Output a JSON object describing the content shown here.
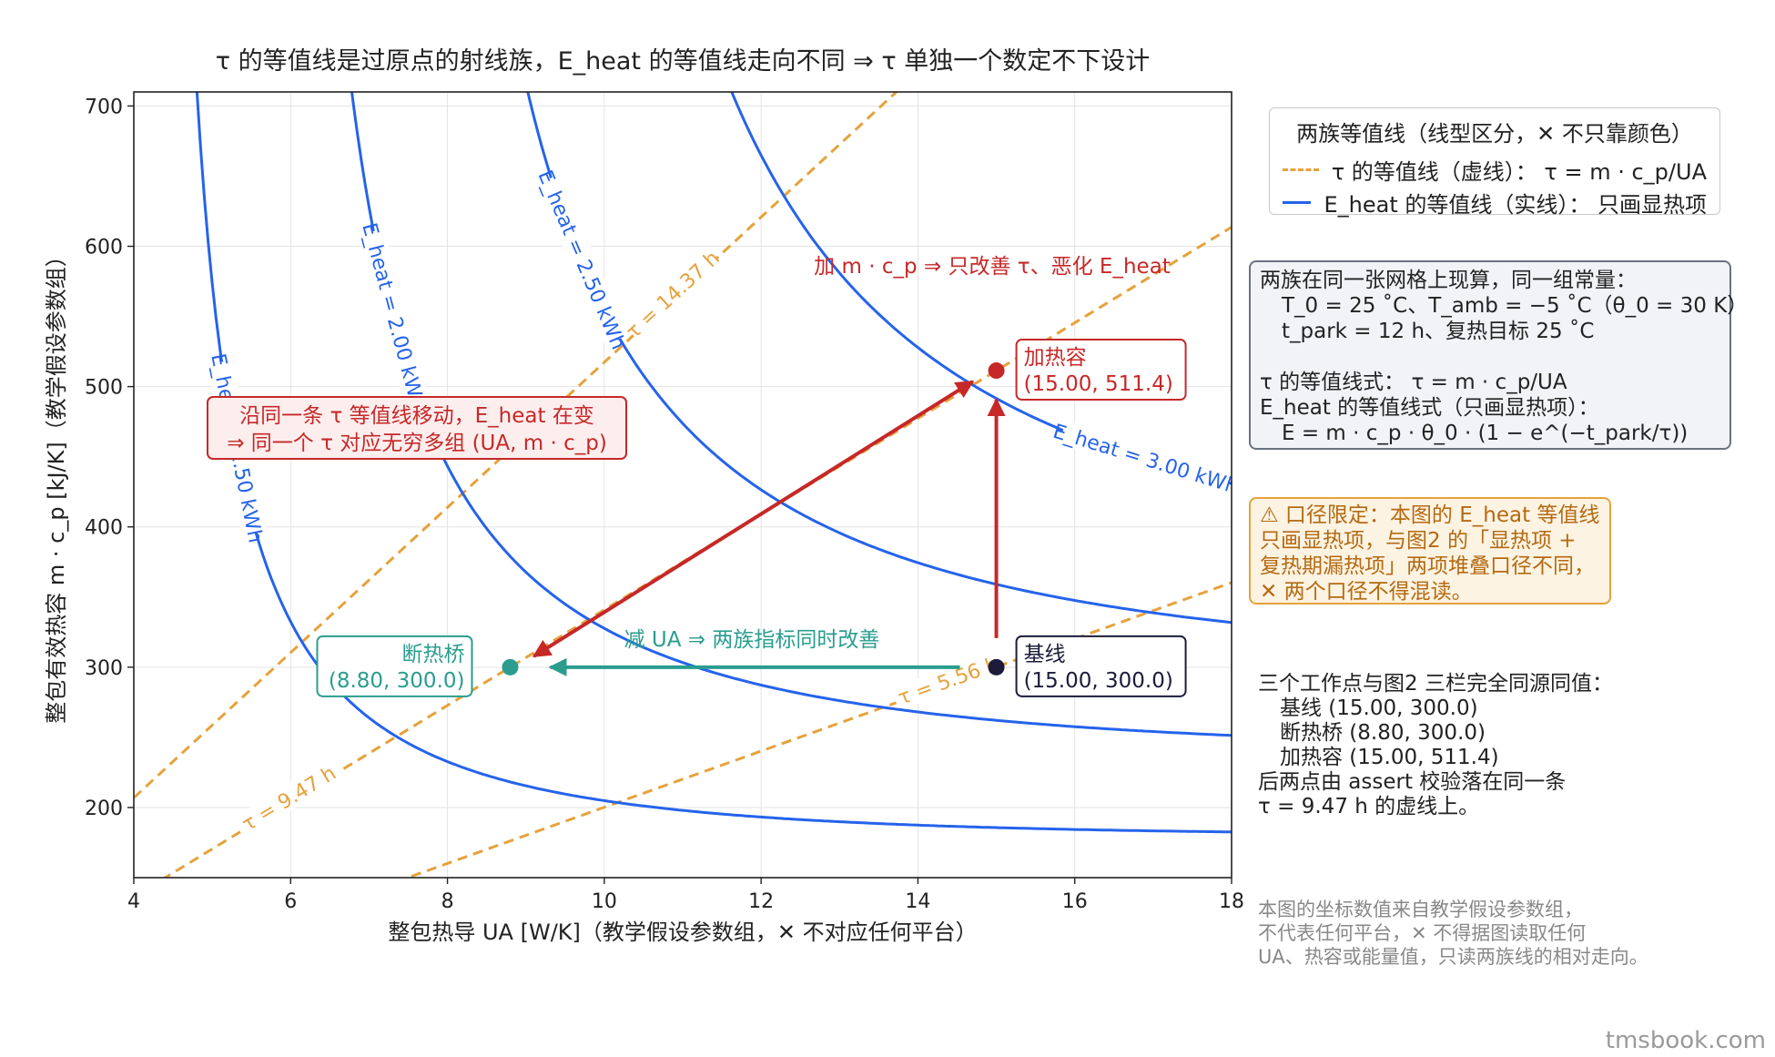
{
  "title": "τ 的等值线是过原点的射线族，E_heat 的等值线走向不同 ⇒ τ 单独一个数定不下设计",
  "chart_data": {
    "type": "line",
    "xlabel": "整包热导 UA [W/K]（教学假设参数组，✕ 不对应任何平台）",
    "ylabel": "整包有效热容 m · c_p [kJ/K]（教学假设参数组）",
    "xlim": [
      4,
      18
    ],
    "ylim": [
      150,
      710
    ],
    "xticks": [
      4,
      6,
      8,
      10,
      12,
      14,
      16,
      18
    ],
    "yticks": [
      200,
      300,
      400,
      500,
      600,
      700
    ],
    "grid": true,
    "constants": {
      "theta0": 30,
      "t_park": 12
    },
    "tau_lines": [
      {
        "tau": 5.56,
        "label": "τ = 5.56 h"
      },
      {
        "tau": 9.47,
        "label": "τ = 9.47 h"
      },
      {
        "tau": 14.37,
        "label": "τ = 14.37 h"
      }
    ],
    "eheat_lines": [
      {
        "E": 1.5,
        "label": "E_heat = 1.50 kWh"
      },
      {
        "E": 2.0,
        "label": "E_heat = 2.00 kWh"
      },
      {
        "E": 2.5,
        "label": "E_heat = 2.50 kWh"
      },
      {
        "E": 3.0,
        "label": "E_heat = 3.00 kWh"
      }
    ],
    "points": [
      {
        "name": "基线",
        "label": "基线\n(15.00, 300.0)",
        "x": 15.0,
        "y": 300.0,
        "color": "#1c1c3a"
      },
      {
        "name": "断热桥",
        "label": "断热桥\n(8.80, 300.0)",
        "x": 8.8,
        "y": 300.0,
        "color": "#2a9d8f"
      },
      {
        "name": "加热容",
        "label": "加热容\n(15.00, 511.4)",
        "x": 15.0,
        "y": 511.4,
        "color": "#c62828"
      }
    ],
    "annotations": {
      "reduce_ua": "减 UA ⇒ 两族指标同时改善",
      "add_mcp": "加 m · c_p ⇒ 只改善 τ、恶化 E_heat",
      "same_tau": "沿同一条 τ 等值线移动，E_heat 在变\n⇒ 同一个 τ 对应无穷多组 (UA, m · c_p)"
    }
  },
  "legend": {
    "title": "两族等值线（线型区分，✕ 不只靠颜色）",
    "tau_entry": "τ 的等值线（虚线）： τ = m · c_p/UA",
    "eheat_entry": "E_heat 的等值线（实线）： 只画显热项",
    "tau_color": "#e6a23c",
    "eheat_color": "#2563eb"
  },
  "note_constants": {
    "l1": "两族在同一张网格上现算，同一组常量：",
    "l2": "T_0 = 25 ˚C、T_amb = −5 ˚C（θ_0 = 30 K）",
    "l3": "t_park = 12 h、复热目标 25 ˚C",
    "l4": "τ 的等值线式： τ = m · c_p/UA",
    "l5": "E_heat 的等值线式（只画显热项）：",
    "l6": "E = m · c_p · θ_0 · (1 − e^(−t_park/τ))"
  },
  "note_caveat": {
    "l1": "⚠ 口径限定：本图的 E_heat 等值线",
    "l2": "只画显热项，与图2 的「显热项 +",
    "l3": "复热期漏热项」两项堆叠口径不同，",
    "l4": "✕ 两个口径不得混读。"
  },
  "note_points": {
    "l1": "三个工作点与图2 三栏完全同源同值：",
    "l2": "基线 (15.00, 300.0)",
    "l3": "断热桥 (8.80, 300.0)",
    "l4": "加热容 (15.00, 511.4)",
    "l5": "后两点由 assert 校验落在同一条",
    "l6": "τ = 9.47 h 的虚线上。"
  },
  "note_source": {
    "l1": "本图的坐标数值来自教学假设参数组，",
    "l2": "不代表任何平台，✕ 不得据图读取任何",
    "l3": "UA、热容或能量值，只读两族线的相对走向。"
  },
  "watermark": "tmsbook.com"
}
